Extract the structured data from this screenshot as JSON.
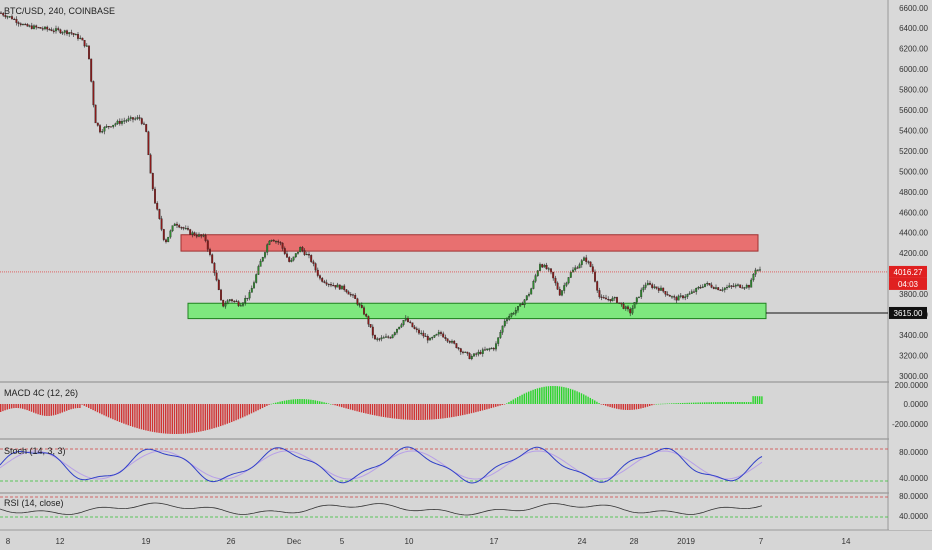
{
  "header": {
    "symbol": "BTC/USD, 240, COINBASE"
  },
  "panes": {
    "macd_title": "MACD 4C (12, 26)",
    "stoch_title": "Stoch (14, 3, 3)",
    "rsi_title": "RSI (14, close)"
  },
  "price_scale": {
    "ticks": [
      "6600.00",
      "6400.00",
      "6200.00",
      "6000.00",
      "5800.00",
      "5600.00",
      "5400.00",
      "5200.00",
      "5000.00",
      "4800.00",
      "4600.00",
      "4400.00",
      "4200.00",
      "3800.00",
      "3600.00",
      "3400.00",
      "3200.00",
      "3000.00"
    ],
    "current_price": "4016.27",
    "countdown": "04:03",
    "support_label": "3615.00"
  },
  "macd_scale": {
    "ticks": [
      "200.0000",
      "0.0000",
      "-200.0000"
    ]
  },
  "stoch_scale": {
    "ticks": [
      "80.0000",
      "40.0000"
    ]
  },
  "rsi_scale": {
    "ticks": [
      "80.0000",
      "40.0000"
    ]
  },
  "time_axis": {
    "labels": [
      "8",
      "12",
      "19",
      "26",
      "Dec",
      "5",
      "10",
      "17",
      "24",
      "28",
      "2019",
      "7",
      "14"
    ]
  },
  "colors": {
    "background": "#d6d6d6",
    "up_candle": "#2e8b2e",
    "down_candle": "#8b1a1a",
    "resistance_zone": "#e87070",
    "support_zone": "#7ee87e",
    "macd_pos": "#2bd52b",
    "macd_neg": "#d03434",
    "stoch_k": "#3040c8",
    "stoch_d": "#b8a0e8",
    "level_upper": "#d04040",
    "level_lower": "#30c030",
    "price_badge": "#e02020"
  },
  "chart_data": {
    "type": "candlestick",
    "title": "BTC/USD, 240, COINBASE",
    "ylim": [
      2880,
      6720
    ],
    "price_path": [
      [
        0,
        6550
      ],
      [
        12,
        6500
      ],
      [
        25,
        6420
      ],
      [
        40,
        6400
      ],
      [
        55,
        6380
      ],
      [
        70,
        6360
      ],
      [
        80,
        6300
      ],
      [
        88,
        6200
      ],
      [
        92,
        5800
      ],
      [
        95,
        5500
      ],
      [
        100,
        5400
      ],
      [
        110,
        5450
      ],
      [
        125,
        5500
      ],
      [
        140,
        5520
      ],
      [
        146,
        5400
      ],
      [
        150,
        5000
      ],
      [
        155,
        4700
      ],
      [
        160,
        4500
      ],
      [
        165,
        4300
      ],
      [
        175,
        4500
      ],
      [
        190,
        4400
      ],
      [
        205,
        4350
      ],
      [
        215,
        4000
      ],
      [
        222,
        3680
      ],
      [
        230,
        3750
      ],
      [
        240,
        3700
      ],
      [
        250,
        3800
      ],
      [
        260,
        4100
      ],
      [
        270,
        4350
      ],
      [
        280,
        4300
      ],
      [
        290,
        4100
      ],
      [
        300,
        4250
      ],
      [
        310,
        4150
      ],
      [
        320,
        3950
      ],
      [
        330,
        3900
      ],
      [
        345,
        3850
      ],
      [
        355,
        3750
      ],
      [
        365,
        3600
      ],
      [
        375,
        3350
      ],
      [
        390,
        3380
      ],
      [
        405,
        3560
      ],
      [
        415,
        3450
      ],
      [
        430,
        3350
      ],
      [
        440,
        3420
      ],
      [
        455,
        3300
      ],
      [
        470,
        3180
      ],
      [
        480,
        3230
      ],
      [
        495,
        3280
      ],
      [
        505,
        3550
      ],
      [
        520,
        3680
      ],
      [
        530,
        3820
      ],
      [
        540,
        4100
      ],
      [
        550,
        4020
      ],
      [
        560,
        3800
      ],
      [
        570,
        4000
      ],
      [
        585,
        4150
      ],
      [
        592,
        4050
      ],
      [
        600,
        3750
      ],
      [
        615,
        3750
      ],
      [
        630,
        3620
      ],
      [
        645,
        3900
      ],
      [
        660,
        3850
      ],
      [
        675,
        3750
      ],
      [
        690,
        3800
      ],
      [
        705,
        3900
      ],
      [
        720,
        3850
      ],
      [
        735,
        3880
      ],
      [
        750,
        3880
      ],
      [
        755,
        4050
      ],
      [
        762,
        4020
      ]
    ],
    "zones": [
      {
        "name": "resistance",
        "x0": 181,
        "x1": 758,
        "low": 4220,
        "high": 4380
      },
      {
        "name": "support",
        "x0": 188,
        "x1": 766,
        "low": 3560,
        "high": 3710
      }
    ],
    "levels": {
      "current": 4016.27,
      "support_line": 3615.0
    },
    "stoch_levels": [
      80,
      20
    ],
    "rsi_levels": [
      70,
      30
    ]
  }
}
